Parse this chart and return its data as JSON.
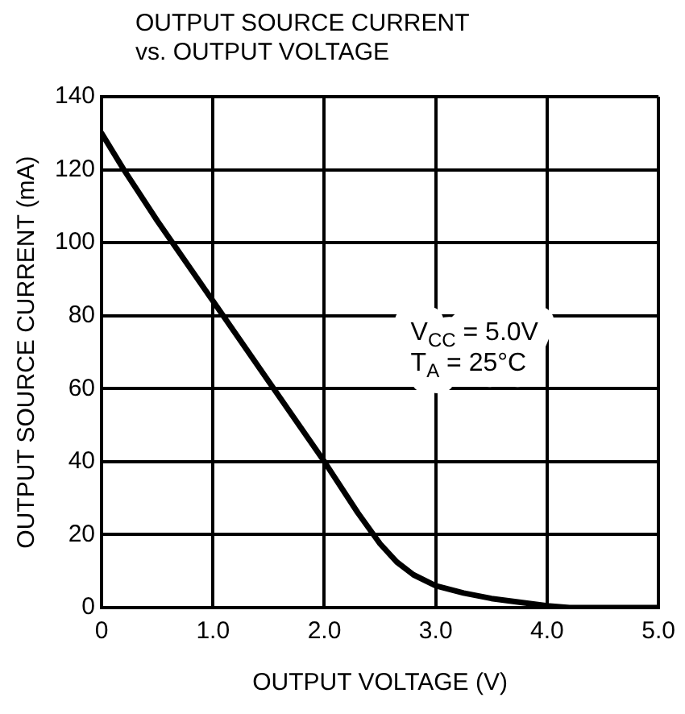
{
  "chart_data": {
    "type": "line",
    "title": "OUTPUT SOURCE CURRENT vs. OUTPUT VOLTAGE",
    "xlabel": "OUTPUT VOLTAGE (V)",
    "ylabel": "OUTPUT SOURCE CURRENT (mA)",
    "annotations": [
      "V$_{CC}$ = 5.0V",
      "T$_{A}$ = 25°C"
    ],
    "series": [
      {
        "color": "#000000",
        "x": [
          0,
          0.2,
          0.5,
          1.0,
          1.5,
          2.0,
          2.3,
          2.5,
          2.65,
          2.8,
          3.0,
          3.25,
          3.5,
          3.75,
          4.0,
          4.2,
          4.5,
          5.0
        ],
        "values": [
          130,
          120,
          106,
          84,
          62,
          40,
          26,
          17.5,
          12.5,
          9,
          6,
          4,
          2.5,
          1.5,
          0.5,
          0,
          0,
          0
        ]
      }
    ],
    "xlim": [
      0,
      5
    ],
    "xticks": [
      0,
      {
        "value": 1,
        "label": "1.0"
      },
      {
        "value": 2,
        "label": "2.0"
      },
      {
        "value": 3,
        "label": "3.0"
      },
      {
        "value": 4,
        "label": "4.0"
      },
      {
        "value": 5,
        "label": "5.0"
      }
    ],
    "ylim": [
      0,
      140
    ],
    "yticks": [
      0,
      20,
      40,
      60,
      80,
      100,
      120,
      140
    ],
    "grid": true,
    "legend": false,
    "marker": "none",
    "line_style": "solid"
  }
}
